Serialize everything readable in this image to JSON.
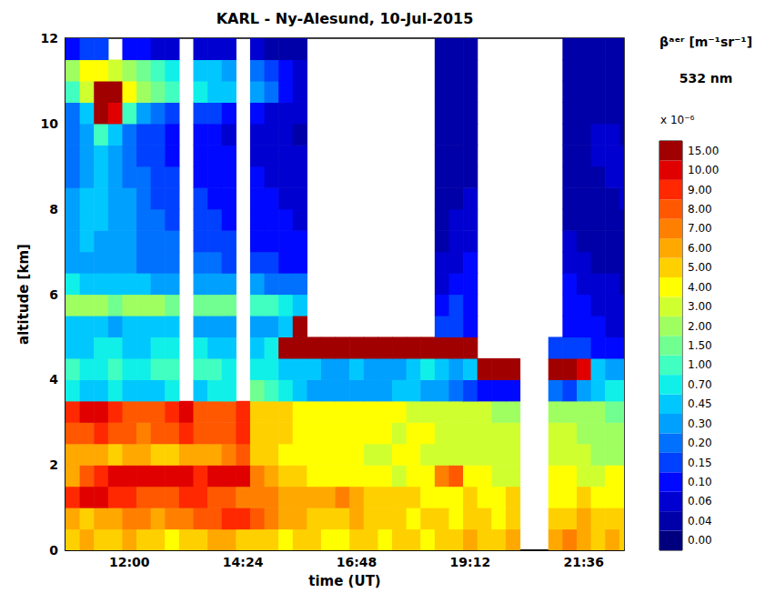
{
  "chart_data": {
    "type": "heatmap",
    "title": "KARL - Ny-Alesund, 10-Jul-2015",
    "x_label": "time (UT)",
    "y_label": "altitude [km]",
    "xlim": [
      10.65,
      22.45
    ],
    "xticks": [
      {
        "value": 12,
        "label": "12:00"
      },
      {
        "value": 14.4,
        "label": "14:24"
      },
      {
        "value": 16.8,
        "label": "16:48"
      },
      {
        "value": 19.2,
        "label": "19:12"
      },
      {
        "value": 21.6,
        "label": "21:36"
      }
    ],
    "ylim": [
      0,
      12
    ],
    "yticks": [
      0,
      2,
      4,
      6,
      8,
      10,
      12
    ],
    "x": [
      10.8,
      11.1,
      11.4,
      11.7,
      12.0,
      12.3,
      12.6,
      12.9,
      13.2,
      13.5,
      13.8,
      14.1,
      14.4,
      14.7,
      15.0,
      15.3,
      15.6,
      15.9,
      16.2,
      16.5,
      16.8,
      17.1,
      17.4,
      17.7,
      18.0,
      18.3,
      18.6,
      18.9,
      19.2,
      19.5,
      19.8,
      20.1,
      20.4,
      20.7,
      21.0,
      21.3,
      21.6,
      21.9,
      22.2,
      22.5
    ],
    "y": [
      0.25,
      0.75,
      1.25,
      1.75,
      2.25,
      2.75,
      3.25,
      3.75,
      4.25,
      4.75,
      5.25,
      5.75,
      6.25,
      6.75,
      7.25,
      7.75,
      8.25,
      8.75,
      9.25,
      9.75,
      10.25,
      10.75,
      11.25,
      11.75
    ],
    "cells": [
      [
        5,
        6,
        5,
        5,
        6,
        5,
        5,
        4,
        5,
        5,
        6,
        6,
        5,
        5,
        5,
        4,
        5,
        5,
        4,
        4,
        5,
        5,
        4,
        5,
        5,
        4,
        5,
        5,
        6,
        5,
        5,
        6,
        null,
        null,
        6,
        7,
        6,
        5,
        6,
        5
      ],
      [
        6,
        5,
        6,
        6,
        7,
        7,
        6,
        7,
        7,
        8,
        8,
        9,
        9,
        8,
        7,
        6,
        6,
        5,
        5,
        5,
        6,
        5,
        5,
        5,
        4,
        5,
        5,
        4,
        5,
        5,
        4,
        5,
        null,
        null,
        5,
        5,
        6,
        5,
        5,
        5
      ],
      [
        9,
        10,
        10,
        9,
        9,
        8,
        8,
        8,
        9,
        9,
        8,
        8,
        7,
        7,
        7,
        6,
        6,
        6,
        6,
        7,
        6,
        5,
        5,
        5,
        5,
        4,
        4,
        4,
        5,
        4,
        4,
        5,
        null,
        null,
        4,
        4,
        5,
        4,
        4,
        4
      ],
      [
        6,
        8,
        9,
        10,
        10,
        10,
        10,
        10,
        10,
        9,
        10,
        10,
        10,
        7,
        6,
        5,
        5,
        4,
        4,
        4,
        4,
        4,
        4,
        3,
        4,
        4,
        7,
        8,
        4,
        4,
        3,
        3,
        null,
        null,
        4,
        4,
        3,
        3,
        4,
        4
      ],
      [
        6,
        6,
        6,
        5,
        6,
        6,
        5,
        5,
        6,
        6,
        6,
        7,
        8,
        5,
        5,
        4,
        4,
        4,
        4,
        4,
        4,
        3,
        3,
        4,
        4,
        3,
        3,
        3,
        3,
        3,
        3,
        3,
        null,
        null,
        3,
        3,
        3,
        2,
        2,
        2
      ],
      [
        8,
        8,
        9,
        8,
        8,
        7,
        8,
        8,
        9,
        8,
        8,
        8,
        9,
        5,
        5,
        5,
        4,
        4,
        4,
        4,
        4,
        4,
        4,
        3,
        4,
        4,
        3,
        3,
        3,
        3,
        3,
        3,
        null,
        null,
        3,
        3,
        2,
        2,
        2,
        2
      ],
      [
        9,
        10,
        10,
        9,
        8,
        8,
        8,
        9,
        10,
        8,
        8,
        8,
        9,
        5,
        5,
        5,
        4,
        4,
        4,
        4,
        4,
        4,
        4,
        4,
        3,
        3,
        3,
        3,
        3,
        3,
        2,
        2,
        null,
        null,
        2,
        2,
        2,
        2,
        1.5,
        1.5
      ],
      [
        0.7,
        0.45,
        0.45,
        0.7,
        0.45,
        0.45,
        0.45,
        0.7,
        null,
        0.45,
        0.7,
        0.7,
        null,
        1.5,
        1,
        0.7,
        0.45,
        0.3,
        0.3,
        0.3,
        0.3,
        0.3,
        0.3,
        0.45,
        0.45,
        0.3,
        0.3,
        0.2,
        0.15,
        0.1,
        0.1,
        0.1,
        null,
        null,
        0.2,
        0.15,
        0.3,
        0.45,
        0.7,
        0.7
      ],
      [
        1,
        0.7,
        0.7,
        1,
        0.7,
        0.7,
        1,
        1,
        null,
        1,
        1,
        0.7,
        null,
        0.7,
        0.7,
        0.45,
        0.45,
        0.45,
        0.3,
        0.3,
        0.45,
        0.3,
        0.3,
        0.3,
        0.45,
        0.7,
        0.45,
        0.3,
        0.45,
        15,
        15,
        15,
        null,
        null,
        15,
        15,
        10,
        0.45,
        0.3,
        0.3
      ],
      [
        0.45,
        0.45,
        0.7,
        0.7,
        0.45,
        0.45,
        0.7,
        0.7,
        null,
        0.7,
        0.45,
        0.45,
        null,
        0.45,
        0.7,
        15,
        15,
        15,
        15,
        15,
        15,
        15,
        15,
        15,
        15,
        15,
        15,
        15,
        15,
        null,
        null,
        null,
        null,
        null,
        0.15,
        0.15,
        0.15,
        0.1,
        0.1,
        0.1
      ],
      [
        0.45,
        0.45,
        0.45,
        0.3,
        0.45,
        0.45,
        0.45,
        0.45,
        null,
        0.3,
        0.3,
        0.3,
        null,
        0.3,
        0.3,
        0.45,
        15,
        null,
        null,
        null,
        null,
        null,
        null,
        null,
        null,
        null,
        0.15,
        0.15,
        0.1,
        null,
        null,
        null,
        null,
        null,
        null,
        0.1,
        0.1,
        0.1,
        0.06,
        0.06
      ],
      [
        2,
        2,
        2,
        1.5,
        2,
        2,
        2,
        1.5,
        null,
        1.5,
        1.5,
        1.5,
        null,
        1,
        1,
        0.7,
        0.45,
        null,
        null,
        null,
        null,
        null,
        null,
        null,
        null,
        null,
        0.1,
        0.15,
        0.1,
        null,
        null,
        null,
        null,
        null,
        null,
        0.1,
        0.1,
        0.06,
        0.06,
        0.06
      ],
      [
        0.7,
        0.45,
        0.45,
        0.45,
        0.45,
        0.45,
        0.3,
        0.3,
        null,
        0.3,
        0.3,
        0.3,
        null,
        0.3,
        0.2,
        0.2,
        0.2,
        null,
        null,
        null,
        null,
        null,
        null,
        null,
        null,
        null,
        0.06,
        0.1,
        0.1,
        null,
        null,
        null,
        null,
        null,
        null,
        0.1,
        0.06,
        0.06,
        0.06,
        0.04
      ],
      [
        0.3,
        0.3,
        0.3,
        0.3,
        0.3,
        0.2,
        0.2,
        0.2,
        null,
        0.2,
        0.2,
        0.15,
        null,
        0.15,
        0.15,
        0.1,
        0.1,
        null,
        null,
        null,
        null,
        null,
        null,
        null,
        null,
        null,
        0.06,
        0.06,
        0.1,
        null,
        null,
        null,
        null,
        null,
        null,
        0.06,
        0.06,
        0.04,
        0.04,
        0.04
      ],
      [
        0.3,
        0.45,
        0.3,
        0.3,
        0.3,
        0.2,
        0.2,
        0.2,
        null,
        0.15,
        0.15,
        0.15,
        null,
        0.1,
        0.1,
        0.1,
        0.1,
        null,
        null,
        null,
        null,
        null,
        null,
        null,
        null,
        null,
        0.04,
        0.06,
        0.06,
        null,
        null,
        null,
        null,
        null,
        null,
        0.06,
        0.04,
        0.04,
        0.04,
        0.04
      ],
      [
        0.3,
        0.45,
        0.45,
        0.3,
        0.3,
        0.2,
        0.2,
        0.15,
        null,
        0.15,
        0.15,
        0.1,
        null,
        0.1,
        0.1,
        0.1,
        0.06,
        null,
        null,
        null,
        null,
        null,
        null,
        null,
        null,
        null,
        0.04,
        0.06,
        0.06,
        null,
        null,
        null,
        null,
        null,
        null,
        0.04,
        0.04,
        0.04,
        0.04,
        0.04
      ],
      [
        0.3,
        0.45,
        0.45,
        0.3,
        0.3,
        0.2,
        0.15,
        0.15,
        null,
        0.15,
        0.1,
        0.1,
        null,
        0.1,
        0.1,
        0.06,
        0.06,
        null,
        null,
        null,
        null,
        null,
        null,
        null,
        null,
        null,
        0.04,
        0.04,
        0.06,
        null,
        null,
        null,
        null,
        null,
        null,
        0.04,
        0.04,
        0.04,
        0.04,
        0.06
      ],
      [
        0.2,
        0.3,
        0.45,
        0.3,
        0.2,
        0.2,
        0.15,
        0.15,
        null,
        0.1,
        0.1,
        0.1,
        null,
        0.1,
        0.06,
        0.06,
        0.06,
        null,
        null,
        null,
        null,
        null,
        null,
        null,
        null,
        null,
        0.04,
        0.04,
        0.04,
        null,
        null,
        null,
        null,
        null,
        null,
        0.04,
        0.04,
        0.04,
        0.06,
        0.06
      ],
      [
        0.2,
        0.3,
        0.45,
        0.3,
        0.2,
        0.15,
        0.15,
        0.1,
        null,
        0.1,
        0.1,
        0.1,
        null,
        0.06,
        0.06,
        0.06,
        0.06,
        null,
        null,
        null,
        null,
        null,
        null,
        null,
        null,
        null,
        0.04,
        0.04,
        0.04,
        null,
        null,
        null,
        null,
        null,
        null,
        0.04,
        0.04,
        0.06,
        0.06,
        0.06
      ],
      [
        0.2,
        0.3,
        1,
        0.45,
        0.2,
        0.15,
        0.15,
        0.1,
        null,
        0.1,
        0.1,
        0.06,
        null,
        0.06,
        0.06,
        0.06,
        0.04,
        null,
        null,
        null,
        null,
        null,
        null,
        null,
        null,
        null,
        0.04,
        0.04,
        0.04,
        null,
        null,
        null,
        null,
        null,
        null,
        0.04,
        0.04,
        0.06,
        0.06,
        0.04
      ],
      [
        0.2,
        0.45,
        15,
        10,
        1,
        0.3,
        0.2,
        0.15,
        null,
        0.15,
        0.15,
        0.1,
        null,
        0.1,
        0.06,
        0.06,
        0.06,
        null,
        null,
        null,
        null,
        null,
        null,
        null,
        null,
        null,
        0.04,
        0.04,
        0.04,
        null,
        null,
        null,
        null,
        null,
        null,
        0.04,
        0.04,
        0.04,
        0.04,
        0.04
      ],
      [
        1,
        3,
        15,
        15,
        4,
        2,
        1.5,
        1,
        null,
        0.7,
        0.45,
        0.45,
        null,
        0.3,
        0.2,
        0.1,
        0.06,
        null,
        null,
        null,
        null,
        null,
        null,
        null,
        null,
        null,
        0.04,
        0.04,
        0.04,
        null,
        null,
        null,
        null,
        null,
        null,
        0.04,
        0.04,
        0.04,
        0.04,
        0.04
      ],
      [
        2,
        4,
        4,
        3,
        2,
        1.5,
        1,
        0.7,
        null,
        0.45,
        0.45,
        0.3,
        null,
        0.2,
        0.15,
        0.1,
        0.06,
        null,
        null,
        null,
        null,
        null,
        null,
        null,
        null,
        null,
        0.04,
        0.04,
        0.04,
        null,
        null,
        null,
        null,
        null,
        null,
        0.04,
        0.04,
        0.04,
        0.04,
        0.04
      ],
      [
        0.1,
        0.15,
        0.15,
        null,
        0.1,
        0.1,
        0.06,
        0.06,
        null,
        0.06,
        0.06,
        0.06,
        null,
        0.06,
        0.04,
        0.04,
        0.04,
        null,
        null,
        null,
        null,
        null,
        null,
        null,
        null,
        null,
        0.04,
        0.04,
        0.04,
        null,
        null,
        null,
        null,
        null,
        null,
        0.04,
        0.04,
        0.04,
        0.04,
        0.04
      ]
    ],
    "colorbar": {
      "title": "βᵃᵉʳ [m⁻¹sr⁻¹]",
      "subtitle": "532 nm",
      "scale_label": "x 10⁻⁶",
      "ticks": [
        {
          "value": 0,
          "label": "0.00"
        },
        {
          "value": 0.04,
          "label": "0.04"
        },
        {
          "value": 0.06,
          "label": "0.06"
        },
        {
          "value": 0.1,
          "label": "0.10"
        },
        {
          "value": 0.15,
          "label": "0.15"
        },
        {
          "value": 0.2,
          "label": "0.20"
        },
        {
          "value": 0.3,
          "label": "0.30"
        },
        {
          "value": 0.45,
          "label": "0.45"
        },
        {
          "value": 0.7,
          "label": "0.70"
        },
        {
          "value": 1,
          "label": "1.00"
        },
        {
          "value": 1.5,
          "label": "1.50"
        },
        {
          "value": 2,
          "label": "2.00"
        },
        {
          "value": 3,
          "label": "3.00"
        },
        {
          "value": 4,
          "label": "4.00"
        },
        {
          "value": 5,
          "label": "5.00"
        },
        {
          "value": 6,
          "label": "6.00"
        },
        {
          "value": 7,
          "label": "7.00"
        },
        {
          "value": 8,
          "label": "8.00"
        },
        {
          "value": 9,
          "label": "9.00"
        },
        {
          "value": 10,
          "label": "10.00"
        },
        {
          "value": 15,
          "label": "15.00"
        }
      ],
      "colors": [
        "#00007f",
        "#0000a8",
        "#0000d0",
        "#0008ff",
        "#0040ff",
        "#0070ff",
        "#00a0ff",
        "#00c8ff",
        "#10f0e8",
        "#40ffc0",
        "#70ff90",
        "#a0ff60",
        "#d0ff30",
        "#ffff00",
        "#ffd000",
        "#ffa800",
        "#ff8000",
        "#ff5800",
        "#ff2800",
        "#e00000",
        "#a00000"
      ]
    }
  }
}
